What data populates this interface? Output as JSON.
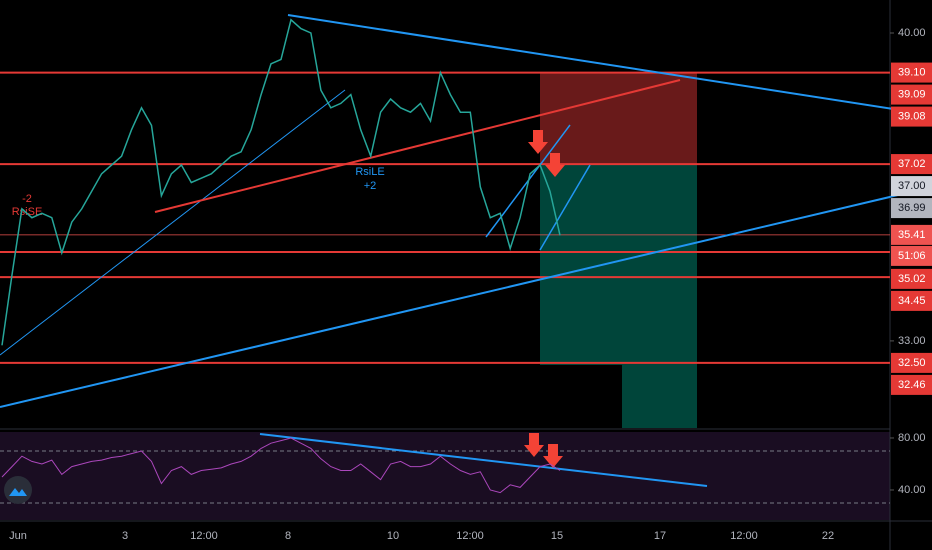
{
  "chart_data": [
    {
      "type": "line",
      "values": [
        32.9,
        34.5,
        36.0,
        35.8,
        35.9,
        35.8,
        35.0,
        35.7,
        36.0,
        36.4,
        36.8,
        37.0,
        37.2,
        37.8,
        38.3,
        37.9,
        36.3,
        36.8,
        37.0,
        36.6,
        36.7,
        36.8,
        37.0,
        37.2,
        37.3,
        37.8,
        38.6,
        39.3,
        39.4,
        40.3,
        40.1,
        40.0,
        38.7,
        38.3,
        38.4,
        38.6,
        37.8,
        37.2,
        38.2,
        38.5,
        38.3,
        38.2,
        38.4,
        38.0,
        39.1,
        38.6,
        38.2,
        38.2,
        36.5,
        35.8,
        35.9,
        35.1,
        35.8,
        36.8,
        37.0,
        36.4,
        35.4
      ],
      "color": "#26a69a",
      "ylim": [
        31.02,
        40.75
      ],
      "yticks": [
        {
          "value": 40,
          "label": "40.00"
        },
        {
          "value": 33,
          "label": "33.00"
        }
      ],
      "price_labels": [
        {
          "value": 39.1,
          "label": "39.10",
          "color": "#e53935"
        },
        {
          "value": 39.09,
          "label": "39.09",
          "color": "#e53935"
        },
        {
          "value": 39.08,
          "label": "39.08",
          "color": "#e53935"
        },
        {
          "value": 37.02,
          "label": "37.02",
          "color": "#e53935"
        },
        {
          "value": 37.0,
          "label": "37.00",
          "color": "#d1d4dc"
        },
        {
          "value": 36.99,
          "label": "36.99",
          "color": "#b2b5be"
        },
        {
          "value": 35.41,
          "label": "35.41",
          "color": "#ef5350"
        },
        {
          "value": 35.02,
          "label": "35.02",
          "color": "#e53935"
        },
        {
          "value": 34.45,
          "label": "34.45",
          "color": "#e53935"
        },
        {
          "value": 32.5,
          "label": "32.50",
          "color": "#e53935"
        },
        {
          "value": 32.46,
          "label": "32.46",
          "color": "#e53935"
        }
      ],
      "countdown": "51:06",
      "levels": [
        39.1,
        37.02,
        35.02,
        34.45,
        32.5
      ],
      "x_labels": [
        "Jun",
        "3",
        "12:00",
        "8",
        "10",
        "12:00",
        "15",
        "17",
        "12:00",
        "22"
      ],
      "annotations": [
        "-2",
        "RsiSE",
        "RsiLE",
        "+2"
      ]
    },
    {
      "type": "line",
      "values": [
        50,
        58,
        66,
        62,
        60,
        63,
        52,
        58,
        60,
        62,
        63,
        65,
        66,
        68,
        70,
        62,
        45,
        55,
        58,
        52,
        55,
        56,
        57,
        60,
        62,
        66,
        72,
        76,
        78,
        80,
        76,
        72,
        64,
        58,
        55,
        55,
        60,
        54,
        48,
        60,
        62,
        58,
        58,
        60,
        66,
        60,
        55,
        52,
        54,
        40,
        38,
        44,
        42,
        50,
        58,
        60,
        55
      ],
      "color": "#ab47bc",
      "ylim": [
        16.9,
        84.6
      ],
      "yticks": [
        {
          "value": 80,
          "label": "80.00"
        },
        {
          "value": 40,
          "label": "40.00"
        }
      ],
      "bands": [
        70,
        30
      ]
    }
  ]
}
